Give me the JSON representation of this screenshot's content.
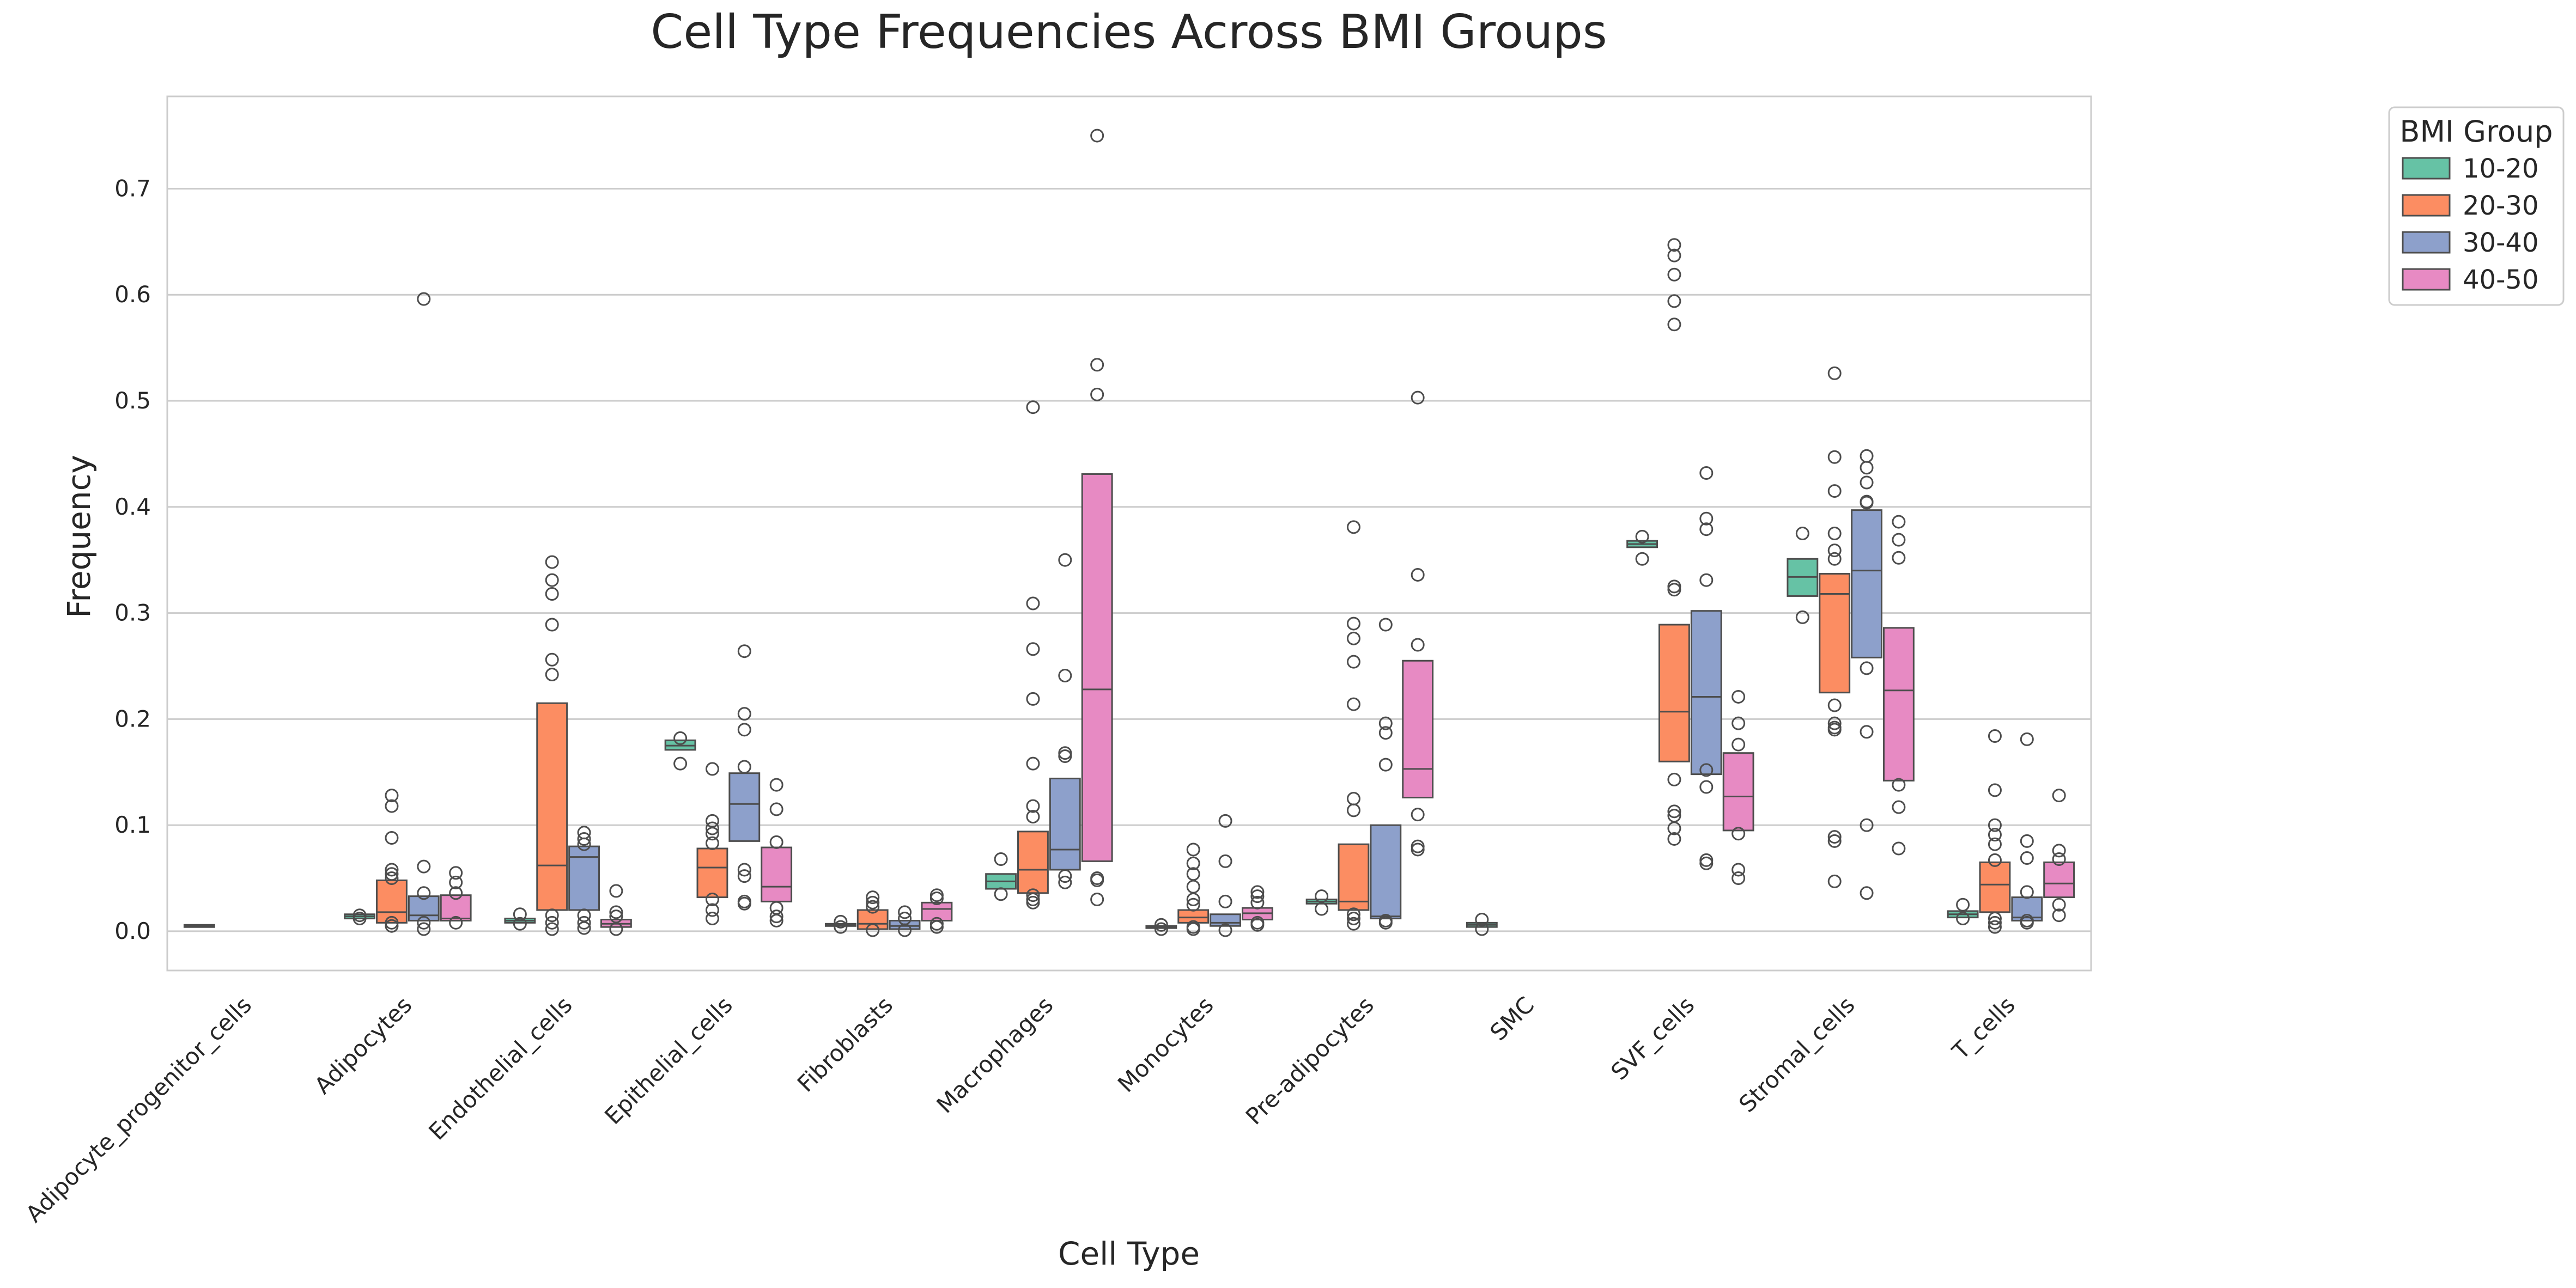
{
  "chart_data": {
    "type": "box",
    "title": "Cell Type Frequencies Across BMI Groups",
    "xlabel": "Cell Type",
    "ylabel": "Frequency",
    "ylim": [
      -0.037,
      0.787
    ],
    "yticks": [
      "0.0",
      "0.1",
      "0.2",
      "0.3",
      "0.4",
      "0.5",
      "0.6",
      "0.7"
    ],
    "grid": true,
    "legend": {
      "title": "BMI Group",
      "placement": "outside-top-right"
    },
    "categories": [
      "Adipocyte_progenitor_cells",
      "Adipocytes",
      "Endothelial_cells",
      "Epithelial_cells",
      "Fibroblasts",
      "Macrophages",
      "Monocytes",
      "Pre-adipocytes",
      "SMC",
      "SVF_cells",
      "Stromal_cells",
      "T_cells"
    ],
    "series": [
      {
        "name": "10-20",
        "color": "#66c2a5",
        "boxes": [
          {
            "q1": 0.005,
            "median": 0.005,
            "q3": 0.006,
            "outliers": []
          },
          {
            "q1": 0.012,
            "median": 0.014,
            "q3": 0.016,
            "outliers": [
              0.012,
              0.015
            ]
          },
          {
            "q1": 0.008,
            "median": 0.01,
            "q3": 0.012,
            "outliers": [
              0.007,
              0.016
            ]
          },
          {
            "q1": 0.171,
            "median": 0.175,
            "q3": 0.18,
            "outliers": [
              0.182,
              0.158
            ]
          },
          {
            "q1": 0.005,
            "median": 0.006,
            "q3": 0.007,
            "outliers": [
              0.004,
              0.009
            ]
          },
          {
            "q1": 0.04,
            "median": 0.047,
            "q3": 0.054,
            "outliers": [
              0.068,
              0.035
            ]
          },
          {
            "q1": 0.003,
            "median": 0.004,
            "q3": 0.005,
            "outliers": [
              0.002,
              0.006
            ]
          },
          {
            "q1": 0.026,
            "median": 0.028,
            "q3": 0.03,
            "outliers": [
              0.033,
              0.021
            ]
          },
          {
            "q1": 0.004,
            "median": 0.006,
            "q3": 0.008,
            "outliers": [
              0.011,
              0.002
            ]
          },
          {
            "q1": 0.362,
            "median": 0.365,
            "q3": 0.368,
            "outliers": [
              0.372,
              0.351
            ]
          },
          {
            "q1": 0.316,
            "median": 0.334,
            "q3": 0.351,
            "outliers": [
              0.375,
              0.296
            ]
          },
          {
            "q1": 0.013,
            "median": 0.016,
            "q3": 0.019,
            "outliers": [
              0.025,
              0.012
            ]
          }
        ]
      },
      {
        "name": "20-30",
        "color": "#fc8d62",
        "boxes": [
          null,
          {
            "q1": 0.008,
            "median": 0.018,
            "q3": 0.048,
            "outliers": [
              0.128,
              0.118,
              0.088,
              0.058,
              0.054,
              0.05,
              0.005,
              0.008
            ]
          },
          {
            "q1": 0.02,
            "median": 0.062,
            "q3": 0.215,
            "outliers": [
              0.348,
              0.331,
              0.318,
              0.289,
              0.256,
              0.242,
              0.015,
              0.008,
              0.002
            ]
          },
          {
            "q1": 0.032,
            "median": 0.06,
            "q3": 0.078,
            "outliers": [
              0.153,
              0.104,
              0.097,
              0.092,
              0.083,
              0.03,
              0.02,
              0.012
            ]
          },
          {
            "q1": 0.002,
            "median": 0.007,
            "q3": 0.02,
            "outliers": [
              0.032,
              0.027,
              0.023,
              0.001
            ]
          },
          {
            "q1": 0.036,
            "median": 0.058,
            "q3": 0.094,
            "outliers": [
              0.494,
              0.309,
              0.266,
              0.219,
              0.158,
              0.118,
              0.108,
              0.034,
              0.03,
              0.027
            ]
          },
          {
            "q1": 0.008,
            "median": 0.013,
            "q3": 0.02,
            "outliers": [
              0.077,
              0.064,
              0.054,
              0.042,
              0.03,
              0.025,
              0.004,
              0.002
            ]
          },
          {
            "q1": 0.02,
            "median": 0.028,
            "q3": 0.082,
            "outliers": [
              0.381,
              0.29,
              0.276,
              0.254,
              0.214,
              0.125,
              0.114,
              0.016,
              0.012,
              0.007
            ]
          },
          null,
          {
            "q1": 0.16,
            "median": 0.207,
            "q3": 0.289,
            "outliers": [
              0.647,
              0.637,
              0.619,
              0.594,
              0.572,
              0.325,
              0.322,
              0.143,
              0.113,
              0.109,
              0.097,
              0.087
            ]
          },
          {
            "q1": 0.225,
            "median": 0.318,
            "q3": 0.337,
            "outliers": [
              0.526,
              0.447,
              0.415,
              0.375,
              0.359,
              0.351,
              0.213,
              0.196,
              0.192,
              0.19,
              0.089,
              0.085,
              0.047
            ]
          },
          {
            "q1": 0.018,
            "median": 0.044,
            "q3": 0.065,
            "outliers": [
              0.184,
              0.133,
              0.1,
              0.091,
              0.082,
              0.067,
              0.012,
              0.008,
              0.004
            ]
          }
        ]
      },
      {
        "name": "30-40",
        "color": "#8da0cb",
        "boxes": [
          null,
          {
            "q1": 0.01,
            "median": 0.015,
            "q3": 0.033,
            "outliers": [
              0.596,
              0.061,
              0.036,
              0.008,
              0.002
            ]
          },
          {
            "q1": 0.02,
            "median": 0.07,
            "q3": 0.08,
            "outliers": [
              0.093,
              0.087,
              0.082,
              0.015,
              0.008,
              0.003
            ]
          },
          {
            "q1": 0.085,
            "median": 0.12,
            "q3": 0.149,
            "outliers": [
              0.264,
              0.205,
              0.19,
              0.155,
              0.058,
              0.052,
              0.028,
              0.026
            ]
          },
          {
            "q1": 0.002,
            "median": 0.005,
            "q3": 0.01,
            "outliers": [
              0.018,
              0.012,
              0.001
            ]
          },
          {
            "q1": 0.058,
            "median": 0.077,
            "q3": 0.144,
            "outliers": [
              0.35,
              0.241,
              0.168,
              0.165,
              0.052,
              0.046
            ]
          },
          {
            "q1": 0.005,
            "median": 0.008,
            "q3": 0.016,
            "outliers": [
              0.104,
              0.066,
              0.028,
              0.001
            ]
          },
          {
            "q1": 0.012,
            "median": 0.014,
            "q3": 0.1,
            "outliers": [
              0.289,
              0.196,
              0.187,
              0.157,
              0.01,
              0.008
            ]
          },
          null,
          {
            "q1": 0.148,
            "median": 0.221,
            "q3": 0.302,
            "outliers": [
              0.432,
              0.389,
              0.379,
              0.331,
              0.152,
              0.136,
              0.067,
              0.064
            ]
          },
          {
            "q1": 0.258,
            "median": 0.34,
            "q3": 0.397,
            "outliers": [
              0.448,
              0.437,
              0.423,
              0.405,
              0.404,
              0.248,
              0.188,
              0.1,
              0.036
            ]
          },
          {
            "q1": 0.01,
            "median": 0.013,
            "q3": 0.032,
            "outliers": [
              0.181,
              0.085,
              0.069,
              0.037,
              0.01,
              0.008
            ]
          }
        ]
      },
      {
        "name": "40-50",
        "color": "#e78ac3",
        "boxes": [
          null,
          {
            "q1": 0.01,
            "median": 0.012,
            "q3": 0.034,
            "outliers": [
              0.055,
              0.046,
              0.036,
              0.008
            ]
          },
          {
            "q1": 0.004,
            "median": 0.007,
            "q3": 0.011,
            "outliers": [
              0.038,
              0.018,
              0.014,
              0.002
            ]
          },
          {
            "q1": 0.028,
            "median": 0.042,
            "q3": 0.079,
            "outliers": [
              0.138,
              0.115,
              0.084,
              0.022,
              0.014,
              0.01
            ]
          },
          {
            "q1": 0.01,
            "median": 0.021,
            "q3": 0.027,
            "outliers": [
              0.034,
              0.031,
              0.007,
              0.004
            ]
          },
          {
            "q1": 0.066,
            "median": 0.228,
            "q3": 0.431,
            "outliers": [
              0.75,
              0.534,
              0.506,
              0.05,
              0.048,
              0.03
            ]
          },
          {
            "q1": 0.011,
            "median": 0.017,
            "q3": 0.022,
            "outliers": [
              0.037,
              0.033,
              0.027,
              0.008,
              0.006
            ]
          },
          {
            "q1": 0.126,
            "median": 0.153,
            "q3": 0.255,
            "outliers": [
              0.503,
              0.336,
              0.27,
              0.11,
              0.08,
              0.077
            ]
          },
          null,
          {
            "q1": 0.095,
            "median": 0.127,
            "q3": 0.168,
            "outliers": [
              0.221,
              0.196,
              0.176,
              0.092,
              0.058,
              0.05
            ]
          },
          {
            "q1": 0.142,
            "median": 0.227,
            "q3": 0.286,
            "outliers": [
              0.386,
              0.369,
              0.352,
              0.138,
              0.117,
              0.078
            ]
          },
          {
            "q1": 0.032,
            "median": 0.045,
            "q3": 0.065,
            "outliers": [
              0.128,
              0.076,
              0.068,
              0.025,
              0.015
            ]
          }
        ]
      }
    ]
  }
}
